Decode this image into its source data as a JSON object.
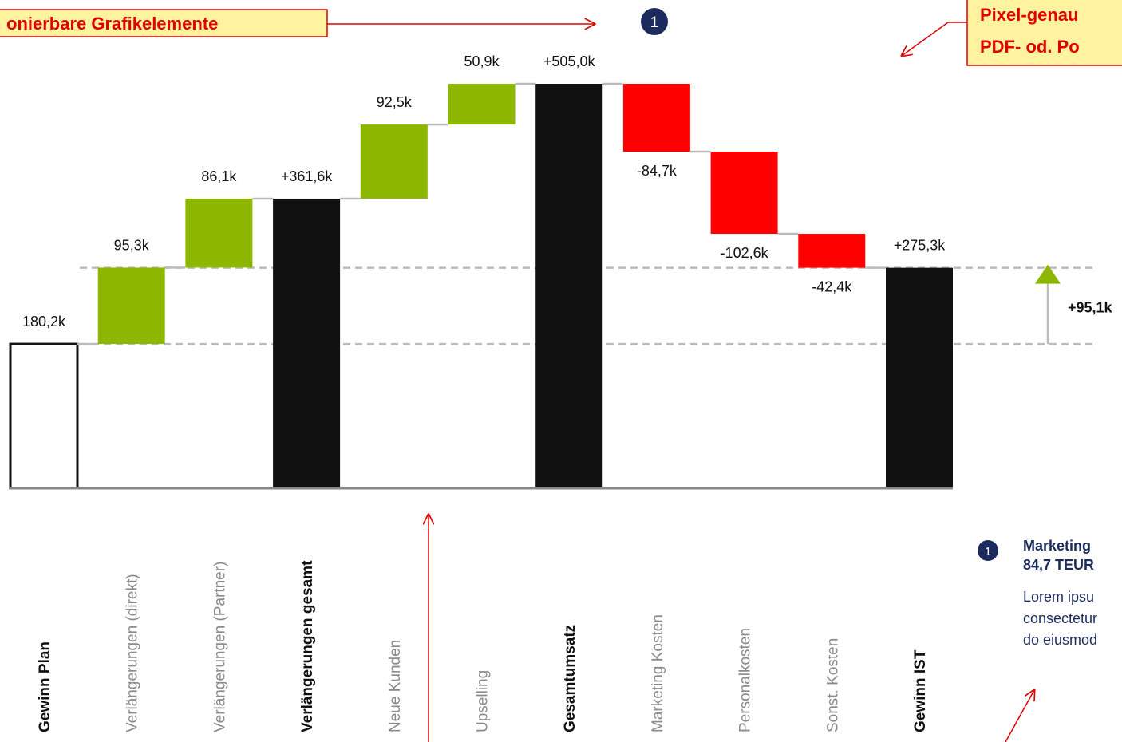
{
  "chart_data": {
    "type": "waterfall",
    "categories": [
      "Gewinn Plan",
      "Verlängerungen (direkt)",
      "Verlängerungen (Partner)",
      "Verlängerungen gesamt",
      "Neue Kunden",
      "Upselling",
      "Gesamtumsatz",
      "Marketing Kosten",
      "Personalkosten",
      "Sonst. Kosten",
      "Gewinn IST"
    ],
    "values": [
      180.2,
      95.3,
      86.1,
      361.6,
      92.5,
      50.9,
      505.0,
      -84.7,
      -102.6,
      -42.4,
      275.3
    ],
    "value_labels": [
      "180,2k",
      "95,3k",
      "86,1k",
      "+361,6k",
      "92,5k",
      "50,9k",
      "+505,0k",
      "-84,7k",
      "-102,6k",
      "-42,4k",
      "+275,3k"
    ],
    "bar_types": [
      "plan",
      "delta",
      "delta",
      "total",
      "delta",
      "delta",
      "total",
      "delta",
      "delta",
      "delta",
      "total"
    ],
    "colors": {
      "plan": "#ffffff",
      "increase": "#8db600",
      "decrease": "#ff0000",
      "total": "#111111"
    },
    "delta": {
      "value": 95.1,
      "label": "+95,1k"
    },
    "annotations": {
      "left_box": "onierbare Grafikelemente",
      "right_box": [
        "Pixel-genau",
        "PDF- od. Po"
      ],
      "marker": "1",
      "note_title": [
        "Marketing",
        "84,7 TEUR"
      ],
      "note_text": [
        "Lorem ipsu",
        "consectetur",
        "do eiusmod"
      ]
    }
  }
}
